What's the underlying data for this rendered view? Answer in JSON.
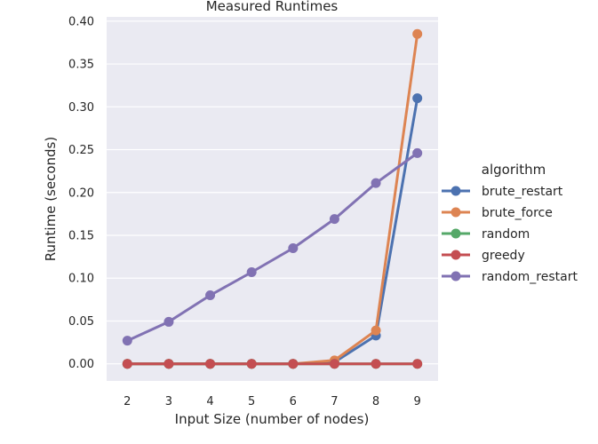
{
  "chart_data": {
    "type": "line",
    "title": "Measured Runtimes",
    "xlabel": "Input Size (number of nodes)",
    "ylabel": "Runtime (seconds)",
    "categories": [
      "2",
      "3",
      "4",
      "5",
      "6",
      "7",
      "8",
      "9"
    ],
    "ylim": [
      -0.02,
      0.405
    ],
    "yticks": [
      "0.00",
      "0.05",
      "0.10",
      "0.15",
      "0.20",
      "0.25",
      "0.30",
      "0.35",
      "0.40"
    ],
    "grid": true,
    "legend_title": "algorithm",
    "legend_position": "right",
    "series": [
      {
        "name": "brute_restart",
        "color": "#4c72b0",
        "values": [
          0.0,
          0.0,
          0.0,
          0.0,
          0.0,
          0.002,
          0.033,
          0.31
        ]
      },
      {
        "name": "brute_force",
        "color": "#dd8452",
        "values": [
          0.0,
          0.0,
          0.0,
          0.0,
          0.0,
          0.004,
          0.039,
          0.385
        ]
      },
      {
        "name": "random",
        "color": "#55a868",
        "values": [
          0.0,
          0.0,
          0.0,
          0.0,
          0.0,
          0.0,
          0.0,
          0.0
        ]
      },
      {
        "name": "greedy",
        "color": "#c44e52",
        "values": [
          0.0,
          0.0,
          0.0,
          0.0,
          0.0,
          0.0,
          0.0,
          0.0
        ]
      },
      {
        "name": "random_restart",
        "color": "#8172b3",
        "values": [
          0.027,
          0.049,
          0.08,
          0.107,
          0.135,
          0.169,
          0.211,
          0.246
        ]
      }
    ]
  }
}
